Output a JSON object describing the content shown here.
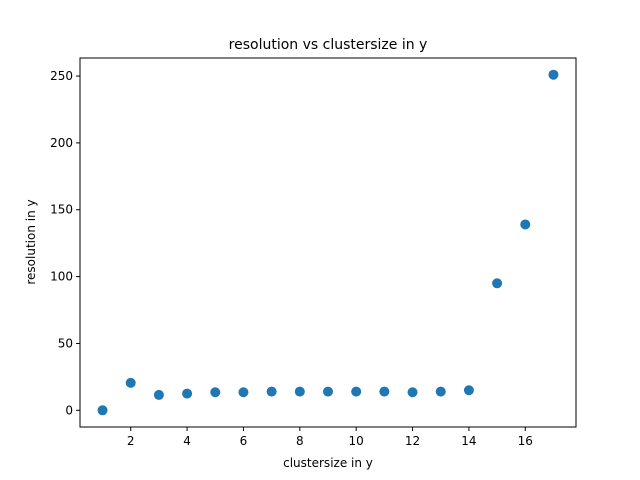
{
  "chart_data": {
    "type": "scatter",
    "title": "resolution vs clustersize in y",
    "xlabel": "clustersize in y",
    "ylabel": "resolution in y",
    "x": [
      1,
      2,
      3,
      4,
      5,
      6,
      7,
      8,
      9,
      10,
      11,
      12,
      13,
      14,
      15,
      16,
      17
    ],
    "y": [
      0,
      20.5,
      11.5,
      12.5,
      13.5,
      13.5,
      14,
      14,
      14,
      14,
      14,
      13.5,
      14,
      15,
      95,
      139,
      251
    ],
    "xlim": [
      0.2,
      17.8
    ],
    "ylim": [
      -12.5,
      263.5
    ],
    "xticks": [
      2,
      4,
      6,
      8,
      10,
      12,
      14,
      16
    ],
    "yticks": [
      0,
      50,
      100,
      150,
      200,
      250
    ],
    "grid": false,
    "marker_color": "#1f77b4"
  }
}
